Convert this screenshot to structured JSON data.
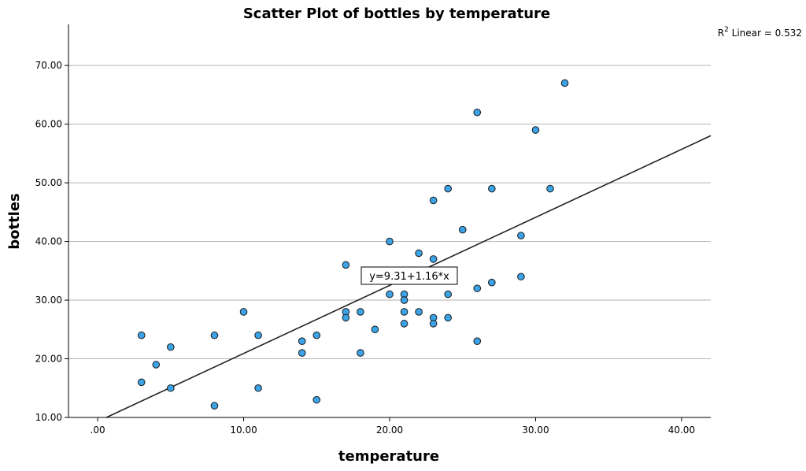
{
  "chart_data": {
    "type": "scatter",
    "title": "Scatter Plot of bottles by temperature",
    "xlabel": "temperature",
    "ylabel": "bottles",
    "xlim": [
      -2,
      42
    ],
    "ylim": [
      10,
      77
    ],
    "x_ticks": [
      0,
      10,
      20,
      30,
      40
    ],
    "x_tick_labels": [
      ".00",
      "10.00",
      "20.00",
      "30.00",
      "40.00"
    ],
    "y_ticks": [
      10,
      20,
      30,
      40,
      50,
      60,
      70
    ],
    "y_tick_labels": [
      "10.00",
      "20.00",
      "30.00",
      "40.00",
      "50.00",
      "60.00",
      "70.00"
    ],
    "grid": "horizontal",
    "point_color": "#3ba3e6",
    "point_edge_color": "#1a1a1a",
    "fit_line": {
      "intercept": 9.31,
      "slope": 1.16,
      "label": "y=9.31+1.16*x"
    },
    "r2": {
      "prefix": "R",
      "superscript": "2",
      "text": " Linear = 0.532"
    },
    "points": [
      {
        "x": 3,
        "y": 24
      },
      {
        "x": 3,
        "y": 16
      },
      {
        "x": 4,
        "y": 19
      },
      {
        "x": 5,
        "y": 22
      },
      {
        "x": 5,
        "y": 15
      },
      {
        "x": 8,
        "y": 24
      },
      {
        "x": 8,
        "y": 12
      },
      {
        "x": 10,
        "y": 28
      },
      {
        "x": 11,
        "y": 24
      },
      {
        "x": 11,
        "y": 15
      },
      {
        "x": 14,
        "y": 23
      },
      {
        "x": 14,
        "y": 21
      },
      {
        "x": 15,
        "y": 24
      },
      {
        "x": 15,
        "y": 13
      },
      {
        "x": 17,
        "y": 36
      },
      {
        "x": 17,
        "y": 28
      },
      {
        "x": 17,
        "y": 27
      },
      {
        "x": 18,
        "y": 28
      },
      {
        "x": 18,
        "y": 21
      },
      {
        "x": 19,
        "y": 25
      },
      {
        "x": 20,
        "y": 40
      },
      {
        "x": 20,
        "y": 31
      },
      {
        "x": 21,
        "y": 31
      },
      {
        "x": 21,
        "y": 30
      },
      {
        "x": 21,
        "y": 28
      },
      {
        "x": 21,
        "y": 26
      },
      {
        "x": 22,
        "y": 38
      },
      {
        "x": 22,
        "y": 28
      },
      {
        "x": 23,
        "y": 47
      },
      {
        "x": 23,
        "y": 37
      },
      {
        "x": 23,
        "y": 27
      },
      {
        "x": 23,
        "y": 26
      },
      {
        "x": 24,
        "y": 49
      },
      {
        "x": 24,
        "y": 31
      },
      {
        "x": 24,
        "y": 27
      },
      {
        "x": 25,
        "y": 42
      },
      {
        "x": 26,
        "y": 62
      },
      {
        "x": 26,
        "y": 32
      },
      {
        "x": 26,
        "y": 23
      },
      {
        "x": 27,
        "y": 49
      },
      {
        "x": 27,
        "y": 33
      },
      {
        "x": 29,
        "y": 41
      },
      {
        "x": 29,
        "y": 34
      },
      {
        "x": 30,
        "y": 59
      },
      {
        "x": 31,
        "y": 49
      },
      {
        "x": 32,
        "y": 67
      }
    ]
  }
}
